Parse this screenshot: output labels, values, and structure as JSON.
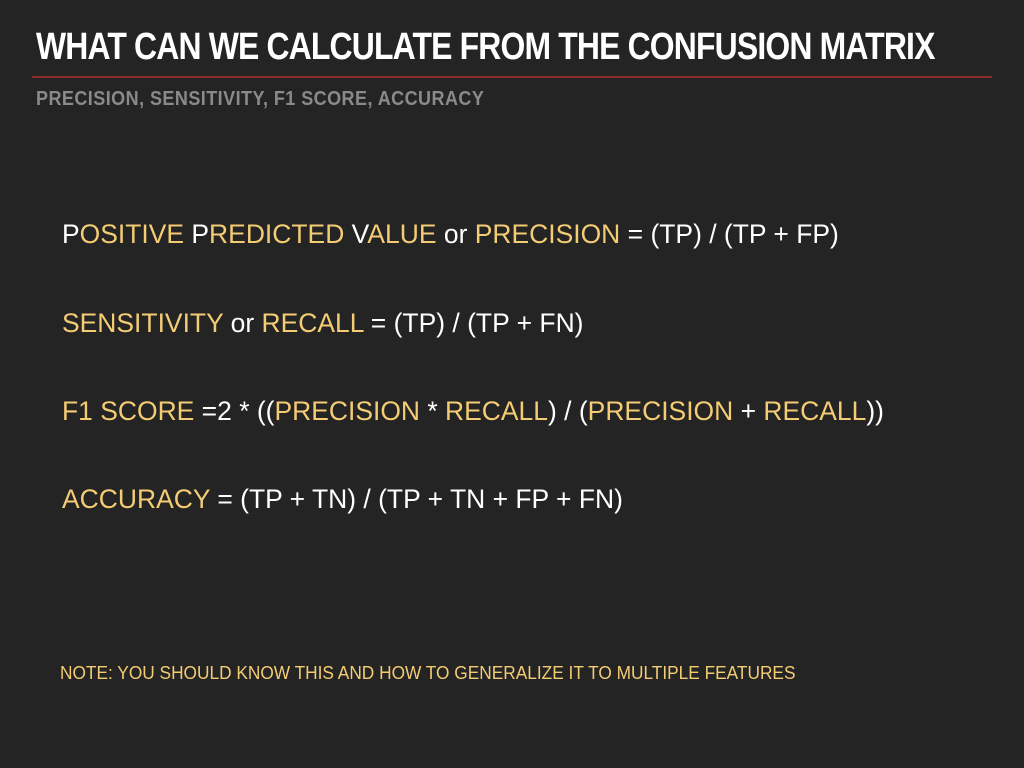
{
  "slide": {
    "title": "WHAT CAN WE CALCULATE FROM THE CONFUSION MATRIX",
    "subtitle": "PRECISION, SENSITIVITY, F1 SCORE, ACCURACY",
    "formulas": [
      {
        "segments": [
          {
            "text": "P",
            "highlight": false
          },
          {
            "text": "OSITIVE",
            "highlight": true
          },
          {
            "text": " P",
            "highlight": false
          },
          {
            "text": "REDICTED",
            "highlight": true
          },
          {
            "text": " V",
            "highlight": false
          },
          {
            "text": "ALUE",
            "highlight": true
          },
          {
            "text": " or ",
            "highlight": false
          },
          {
            "text": "PRECISION",
            "highlight": true
          },
          {
            "text": " = (TP) / (TP + FP)",
            "highlight": false
          }
        ]
      },
      {
        "segments": [
          {
            "text": "SENSITIVITY",
            "highlight": true
          },
          {
            "text": " or ",
            "highlight": false
          },
          {
            "text": "RECALL",
            "highlight": true
          },
          {
            "text": " = (TP) / (TP + FN)",
            "highlight": false
          }
        ]
      },
      {
        "segments": [
          {
            "text": "F1 SCORE",
            "highlight": true
          },
          {
            "text": " =2 * ((",
            "highlight": false
          },
          {
            "text": "PRECISION",
            "highlight": true
          },
          {
            "text": " * ",
            "highlight": false
          },
          {
            "text": "RECALL",
            "highlight": true
          },
          {
            "text": ") / (",
            "highlight": false
          },
          {
            "text": "PRECISION",
            "highlight": true
          },
          {
            "text": " + ",
            "highlight": false
          },
          {
            "text": "RECALL",
            "highlight": true
          },
          {
            "text": "))",
            "highlight": false
          }
        ]
      },
      {
        "segments": [
          {
            "text": "ACCURACY",
            "highlight": true
          },
          {
            "text": " = (TP + TN) / (TP + TN + FP + FN)",
            "highlight": false
          }
        ]
      }
    ],
    "note": "NOTE: YOU SHOULD KNOW THIS AND HOW TO GENERALIZE IT TO MULTIPLE FEATURES"
  },
  "colors": {
    "background": "#242424",
    "title": "#ffffff",
    "rule": "#8f2a2a",
    "subtitle": "#8a8a8a",
    "highlight": "#f4cc73",
    "body_text": "#ffffff"
  }
}
